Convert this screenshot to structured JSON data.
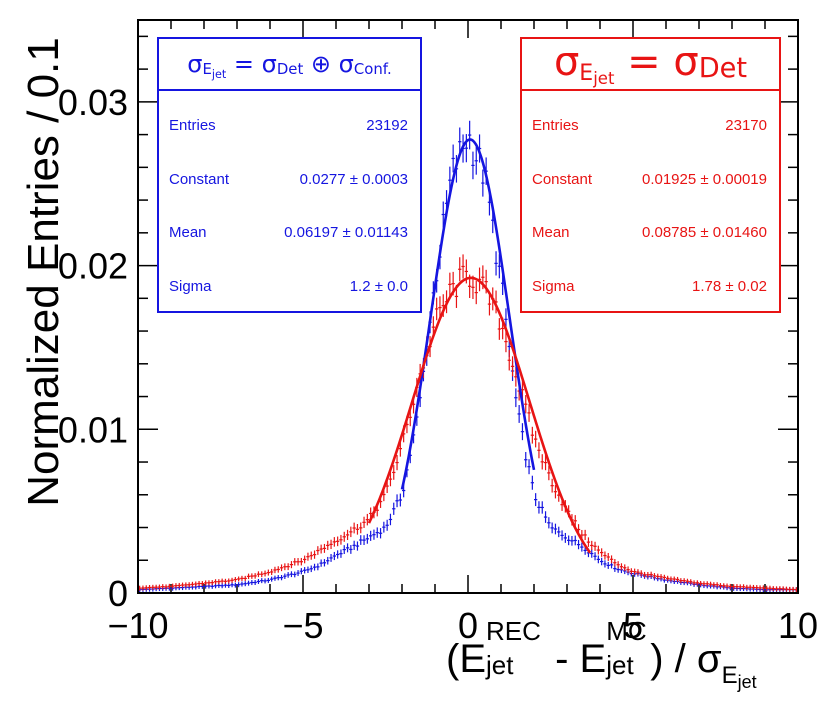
{
  "chart_data": {
    "type": "scatter",
    "title": "",
    "xlabel": "(E_jet^REC - E_jet^MC) / σ_E_jet",
    "ylabel": "Normalized Entries / 0.1",
    "xlim": [
      -10,
      10
    ],
    "ylim": [
      0,
      0.035
    ],
    "x_ticks": [
      "−10",
      "−5",
      "0",
      "5",
      "10"
    ],
    "y_ticks": [
      "0",
      "0.01",
      "0.02",
      "0.03"
    ],
    "series": [
      {
        "name": "σE_jet = σDet ⊕ σConf.",
        "color": "#1515e0",
        "entries": "23192",
        "constant": "0.0277 ± 0.0003",
        "mean": "0.06197 ± 0.01143",
        "sigma": "1.2 ± 0.0",
        "fit": {
          "constant": 0.0277,
          "mean": 0.062,
          "sigma": 1.2,
          "range": [
            -2.0,
            2.0
          ]
        },
        "hist_x": [
          -10,
          -9,
          -8,
          -7,
          -6,
          -5,
          -4.5,
          -4,
          -3.5,
          -3,
          -2.5,
          -2,
          -1.5,
          -1,
          -0.5,
          0,
          0.5,
          1,
          1.5,
          2,
          2.5,
          3,
          3.5,
          4,
          4.5,
          5,
          6,
          7,
          8,
          9,
          10
        ],
        "hist_y": [
          0.0002,
          0.0003,
          0.0004,
          0.0005,
          0.0008,
          0.0013,
          0.0017,
          0.0023,
          0.0028,
          0.0034,
          0.004,
          0.006,
          0.011,
          0.019,
          0.0255,
          0.028,
          0.0255,
          0.019,
          0.011,
          0.006,
          0.004,
          0.0034,
          0.0028,
          0.002,
          0.0015,
          0.0012,
          0.0008,
          0.0005,
          0.0003,
          0.0002,
          0.0002
        ]
      },
      {
        "name": "σE_jet = σDet",
        "color": "#e81414",
        "entries": "23170",
        "constant": "0.01925 ± 0.00019",
        "mean": "0.08785 ± 0.01460",
        "sigma": "1.78 ± 0.02",
        "fit": {
          "constant": 0.01925,
          "mean": 0.088,
          "sigma": 1.78,
          "range": [
            -3.0,
            3.7
          ]
        },
        "hist_x": [
          -10,
          -9,
          -8,
          -7,
          -6,
          -5,
          -4.5,
          -4,
          -3.5,
          -3,
          -2.5,
          -2,
          -1.5,
          -1,
          -0.5,
          0,
          0.5,
          1,
          1.5,
          2,
          2.5,
          3,
          3.5,
          4,
          4.5,
          5,
          6,
          7,
          8,
          9,
          10
        ],
        "hist_y": [
          0.0003,
          0.0004,
          0.0006,
          0.0008,
          0.0013,
          0.002,
          0.0026,
          0.0032,
          0.0038,
          0.0045,
          0.006,
          0.009,
          0.013,
          0.0165,
          0.0185,
          0.0195,
          0.0185,
          0.0165,
          0.013,
          0.0095,
          0.007,
          0.005,
          0.0035,
          0.0025,
          0.0018,
          0.0013,
          0.0009,
          0.0006,
          0.0004,
          0.0003,
          0.0002
        ]
      }
    ]
  },
  "legend_blue": {
    "sym_sigma": "σ",
    "sub_E": "E",
    "sub_jet": "jet",
    "eq": " = ",
    "sub_det": "Det",
    "oplus": " ⊕ ",
    "sub_conf": "Conf.",
    "entries_label": "Entries",
    "constant_label": "Constant",
    "mean_label": "Mean",
    "sigma_label": "Sigma"
  },
  "legend_red": {
    "sym_sigma": "σ",
    "sub_E": "E",
    "sub_jet": "jet",
    "eq": " = ",
    "sub_det": "Det",
    "entries_label": "Entries",
    "constant_label": "Constant",
    "mean_label": "Mean",
    "sigma_label": "Sigma"
  },
  "axis_labels": {
    "ylabel": "Normalized Entries / 0.1",
    "x_open": "(E",
    "x_rec": "REC",
    "x_jet": "jet",
    "x_minus": " - E",
    "x_mc": "MC",
    "x_close": ") / σ",
    "x_sub_E": "E",
    "x_sub_jet": "jet"
  }
}
